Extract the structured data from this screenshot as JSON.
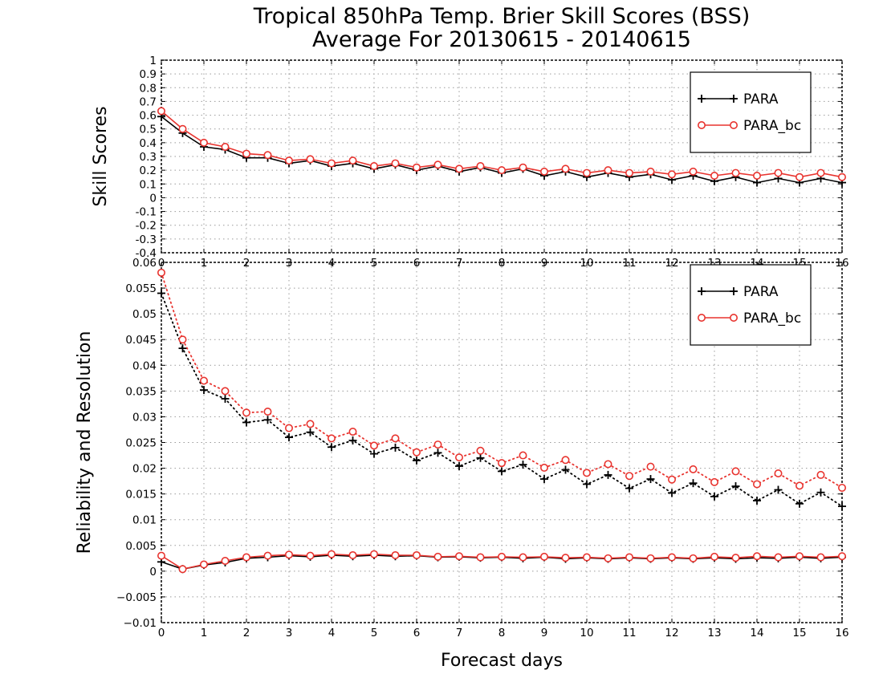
{
  "title": {
    "line1": "Tropical 850hPa Temp. Brier Skill Scores (BSS)",
    "line2": "Average For 20130615 - 20140615"
  },
  "colors": {
    "para": "#000000",
    "para_bc": "#e8342f"
  },
  "chart_data": [
    {
      "type": "line",
      "name": "top",
      "ylabel": "Skill Scores",
      "xlabel": "",
      "xlim": [
        0,
        16
      ],
      "ylim": [
        -0.4,
        1
      ],
      "x_ticks": [
        0,
        1,
        2,
        3,
        4,
        5,
        6,
        7,
        8,
        9,
        10,
        11,
        12,
        13,
        14,
        15,
        16
      ],
      "y_ticks": [
        -0.4,
        -0.3,
        -0.2,
        -0.1,
        0,
        0.1,
        0.2,
        0.3,
        0.4,
        0.5,
        0.6,
        0.7,
        0.8,
        0.9,
        1
      ],
      "y_tick_labels": [
        "-0.4",
        "-0.3",
        "-0.2",
        "-0.1",
        "0",
        "0.1",
        "0.2",
        "0.3",
        "0.4",
        "0.5",
        "0.6",
        "0.7",
        "0.8",
        "0.9",
        "1"
      ],
      "grid": true,
      "legend": "top-right",
      "x": [
        0,
        0.5,
        1,
        1.5,
        2,
        2.5,
        3,
        3.5,
        4,
        4.5,
        5,
        5.5,
        6,
        6.5,
        7,
        7.5,
        8,
        8.5,
        9,
        9.5,
        10,
        10.5,
        11,
        11.5,
        12,
        12.5,
        13,
        13.5,
        14,
        14.5,
        15,
        15.5,
        16
      ],
      "series": [
        {
          "name": "PARA",
          "marker": "plus",
          "color_key": "para",
          "style": "solid",
          "values": [
            0.59,
            0.47,
            0.37,
            0.35,
            0.29,
            0.29,
            0.25,
            0.27,
            0.23,
            0.25,
            0.21,
            0.24,
            0.2,
            0.23,
            0.19,
            0.22,
            0.18,
            0.21,
            0.16,
            0.19,
            0.15,
            0.18,
            0.15,
            0.17,
            0.13,
            0.16,
            0.12,
            0.15,
            0.11,
            0.14,
            0.11,
            0.14,
            0.11
          ]
        },
        {
          "name": "PARA_bc",
          "marker": "circle",
          "color_key": "para_bc",
          "style": "solid",
          "values": [
            0.63,
            0.5,
            0.4,
            0.37,
            0.32,
            0.31,
            0.27,
            0.28,
            0.25,
            0.27,
            0.23,
            0.25,
            0.22,
            0.24,
            0.21,
            0.23,
            0.2,
            0.22,
            0.19,
            0.21,
            0.18,
            0.2,
            0.18,
            0.19,
            0.17,
            0.19,
            0.16,
            0.18,
            0.16,
            0.18,
            0.15,
            0.18,
            0.15
          ]
        }
      ]
    },
    {
      "type": "line",
      "name": "bottom",
      "ylabel": "Reliability and Resolution",
      "xlabel": "Forecast days",
      "xlim": [
        0,
        16
      ],
      "ylim": [
        -0.01,
        0.06
      ],
      "x_ticks": [
        0,
        1,
        2,
        3,
        4,
        5,
        6,
        7,
        8,
        9,
        10,
        11,
        12,
        13,
        14,
        15,
        16
      ],
      "y_ticks": [
        -0.01,
        -0.005,
        0,
        0.005,
        0.01,
        0.015,
        0.02,
        0.025,
        0.03,
        0.035,
        0.04,
        0.045,
        0.05,
        0.055,
        0.06
      ],
      "y_tick_labels": [
        "−0.01",
        "−0.005",
        "0",
        "0.005",
        "0.01",
        "0.015",
        "0.02",
        "0.025",
        "0.03",
        "0.035",
        "0.04",
        "0.045",
        "0.05",
        "0.055",
        "0.06"
      ],
      "grid": true,
      "legend": "top-right",
      "x": [
        0,
        0.5,
        1,
        1.5,
        2,
        2.5,
        3,
        3.5,
        4,
        4.5,
        5,
        5.5,
        6,
        6.5,
        7,
        7.5,
        8,
        8.5,
        9,
        9.5,
        10,
        10.5,
        11,
        11.5,
        12,
        12.5,
        13,
        13.5,
        14,
        14.5,
        15,
        15.5,
        16
      ],
      "series": [
        {
          "name": "PARA",
          "marker": "plus",
          "color_key": "para",
          "style": "dotted",
          "legend": false,
          "values": [
            0.054,
            0.0433,
            0.0352,
            0.0335,
            0.0289,
            0.0294,
            0.026,
            0.027,
            0.0241,
            0.0254,
            0.0228,
            0.024,
            0.0215,
            0.023,
            0.0204,
            0.022,
            0.0194,
            0.0207,
            0.0179,
            0.0197,
            0.0169,
            0.0187,
            0.0161,
            0.0179,
            0.0152,
            0.0171,
            0.0145,
            0.0165,
            0.0137,
            0.0158,
            0.0131,
            0.0153,
            0.0126
          ]
        },
        {
          "name": "PARA_bc",
          "marker": "circle",
          "color_key": "para_bc",
          "style": "dotted",
          "legend": false,
          "values": [
            0.058,
            0.045,
            0.037,
            0.035,
            0.0308,
            0.031,
            0.0278,
            0.0286,
            0.0258,
            0.0271,
            0.0244,
            0.0258,
            0.0231,
            0.0246,
            0.0221,
            0.0234,
            0.021,
            0.0225,
            0.0201,
            0.0216,
            0.0191,
            0.0208,
            0.0185,
            0.0203,
            0.0178,
            0.0198,
            0.0173,
            0.0194,
            0.0169,
            0.019,
            0.0166,
            0.0187,
            0.0162
          ]
        },
        {
          "name": "PARA",
          "marker": "plus",
          "color_key": "para",
          "style": "solid",
          "values": [
            0.0018,
            0.0004,
            0.0012,
            0.0017,
            0.0025,
            0.0027,
            0.003,
            0.0028,
            0.0031,
            0.0029,
            0.0031,
            0.0029,
            0.003,
            0.0027,
            0.0028,
            0.0026,
            0.0027,
            0.0025,
            0.0027,
            0.0024,
            0.0026,
            0.0024,
            0.0026,
            0.0024,
            0.0026,
            0.0024,
            0.0026,
            0.0024,
            0.0026,
            0.0025,
            0.0027,
            0.0025,
            0.0027
          ]
        },
        {
          "name": "PARA_bc",
          "marker": "circle",
          "color_key": "para_bc",
          "style": "solid",
          "values": [
            0.003,
            0.0004,
            0.0013,
            0.002,
            0.0027,
            0.003,
            0.0032,
            0.003,
            0.0033,
            0.0031,
            0.0033,
            0.0031,
            0.0031,
            0.0028,
            0.0029,
            0.0027,
            0.0028,
            0.0027,
            0.0028,
            0.0026,
            0.0027,
            0.0025,
            0.0027,
            0.0025,
            0.0027,
            0.0025,
            0.0028,
            0.0026,
            0.0029,
            0.0027,
            0.0029,
            0.0027,
            0.0029
          ]
        }
      ]
    }
  ]
}
